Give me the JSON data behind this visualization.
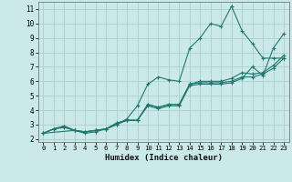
{
  "xlabel": "Humidex (Indice chaleur)",
  "bg_color": "#cce9e9",
  "grid_color": "#aacfcf",
  "line_color": "#1e7870",
  "xlim": [
    -0.5,
    23.5
  ],
  "ylim": [
    1.8,
    11.5
  ],
  "xticks": [
    0,
    1,
    2,
    3,
    4,
    5,
    6,
    7,
    8,
    9,
    10,
    11,
    12,
    13,
    14,
    15,
    16,
    17,
    18,
    19,
    20,
    21,
    22,
    23
  ],
  "yticks": [
    2,
    3,
    4,
    5,
    6,
    7,
    8,
    9,
    10,
    11
  ],
  "lines": [
    {
      "x": [
        0,
        1,
        2,
        3,
        4,
        5,
        6,
        7,
        8,
        9,
        10,
        11,
        12,
        13,
        14,
        15,
        16,
        17,
        18,
        19,
        20,
        21,
        22,
        23
      ],
      "y": [
        2.4,
        2.7,
        2.9,
        2.6,
        2.5,
        2.6,
        2.7,
        3.1,
        3.3,
        3.3,
        4.4,
        4.2,
        4.4,
        4.4,
        5.8,
        6.0,
        6.0,
        6.0,
        6.2,
        6.6,
        6.5,
        6.6,
        7.1,
        7.8
      ]
    },
    {
      "x": [
        0,
        1,
        2,
        3,
        4,
        5,
        6,
        7,
        8,
        9,
        10,
        11,
        12,
        13,
        14,
        15,
        16,
        17,
        18,
        19,
        20,
        21,
        22,
        23
      ],
      "y": [
        2.4,
        2.7,
        2.9,
        2.6,
        2.5,
        2.6,
        2.7,
        3.1,
        3.3,
        3.3,
        4.4,
        4.2,
        4.4,
        4.4,
        5.8,
        5.9,
        5.9,
        5.9,
        6.0,
        6.3,
        6.3,
        6.5,
        6.9,
        7.6
      ]
    },
    {
      "x": [
        0,
        3,
        4,
        5,
        6,
        7,
        8,
        9,
        10,
        11,
        12,
        13,
        14,
        15,
        16,
        17,
        18,
        19,
        20,
        21,
        22,
        23
      ],
      "y": [
        2.4,
        2.6,
        2.4,
        2.5,
        2.7,
        3.0,
        3.4,
        4.3,
        5.8,
        6.3,
        6.1,
        6.0,
        8.3,
        9.0,
        10.0,
        9.8,
        11.2,
        9.5,
        8.6,
        7.6,
        7.6,
        7.6
      ]
    },
    {
      "x": [
        0,
        1,
        2,
        3,
        4,
        5,
        6,
        7,
        8,
        9,
        10,
        11,
        12,
        13,
        14,
        15,
        16,
        17,
        18,
        19,
        20,
        21,
        22,
        23
      ],
      "y": [
        2.4,
        2.7,
        2.8,
        2.6,
        2.5,
        2.6,
        2.7,
        3.0,
        3.3,
        3.3,
        4.3,
        4.1,
        4.3,
        4.3,
        5.7,
        5.8,
        5.8,
        5.8,
        5.9,
        6.2,
        7.0,
        6.4,
        8.3,
        9.3
      ]
    }
  ]
}
